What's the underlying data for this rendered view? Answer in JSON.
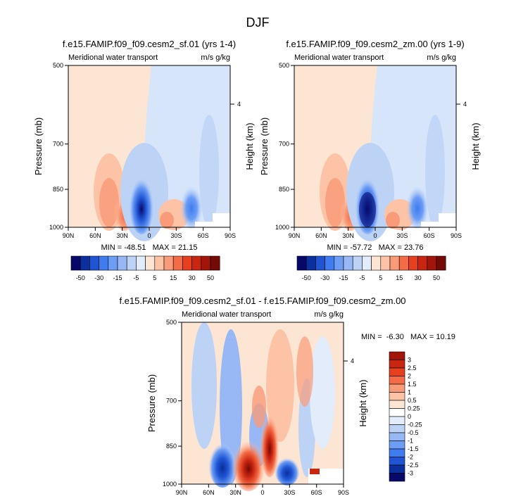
{
  "figure_title": "DJF",
  "chart_data": [
    {
      "type": "heatmap",
      "title": "f.e15.FAMIP.f09_f09.cesm2_sf.01 (yrs 1-4)",
      "left_label": "Meridional water transport",
      "right_label": "m/s g/kg",
      "ylabel": "Pressure (mb)",
      "ylabel_right": "Height (km)",
      "x_ticks": [
        "90N",
        "60N",
        "30N",
        "0",
        "30S",
        "60S",
        "90S"
      ],
      "y_ticks": [
        "500",
        "700",
        "850",
        "1000"
      ],
      "right_tick": "4",
      "stats": "MIN = -48.51   MAX = 21.15",
      "min": -48.51,
      "max": 21.15
    },
    {
      "type": "heatmap",
      "title": "f.e15.FAMIP.f09_f09.cesm2_zm.00 (yrs 1-9)",
      "left_label": "Meridional water transport",
      "right_label": "m/s g/kg",
      "ylabel": "Pressure (mb)",
      "ylabel_right": "Height (km)",
      "x_ticks": [
        "90N",
        "60N",
        "30N",
        "0",
        "30S",
        "60S",
        "90S"
      ],
      "y_ticks": [
        "500",
        "700",
        "850",
        "1000"
      ],
      "right_tick": "4",
      "stats": "MIN = -57.72   MAX = 23.76",
      "min": -57.72,
      "max": 23.76
    },
    {
      "type": "heatmap",
      "title": "f.e15.FAMIP.f09_f09.cesm2_sf.01 - f.e15.FAMIP.f09_f09.cesm2_zm.00",
      "left_label": "Meridional water transport",
      "right_label": "m/s g/kg",
      "ylabel": "Pressure (mb)",
      "ylabel_right": "Height (km)",
      "x_ticks": [
        "90N",
        "60N",
        "30N",
        "0",
        "30S",
        "60S",
        "90S"
      ],
      "y_ticks": [
        "500",
        "700",
        "850",
        "1000"
      ],
      "right_tick": "4",
      "stats": "MIN =  -6.30   MAX = 10.19",
      "min": -6.3,
      "max": 10.19
    }
  ],
  "colorbar_top": {
    "labels": [
      "-50",
      "-30",
      "-15",
      "-5",
      "5",
      "15",
      "30",
      "50"
    ],
    "colors": [
      "#08086b",
      "#0b2f9c",
      "#1f55d3",
      "#3f7cf0",
      "#6d9df5",
      "#97b8f5",
      "#bdd3f6",
      "#e2ecfb",
      "#fde5d4",
      "#fcc3a7",
      "#f99b78",
      "#f46c45",
      "#e6401f",
      "#c92612",
      "#a1150b",
      "#730a05"
    ]
  },
  "colorbar_bottom": {
    "labels": [
      "3",
      "2.5",
      "2",
      "1.5",
      "1",
      "0.5",
      "0.25",
      "0",
      "-0.25",
      "-0.5",
      "-1",
      "-1.5",
      "-2",
      "-2.5",
      "-3"
    ],
    "colors": [
      "#a1150b",
      "#c92612",
      "#e6401f",
      "#f46c45",
      "#f99b78",
      "#fcc3a7",
      "#fde5d4",
      "#ffffff",
      "#e2ecfb",
      "#bdd3f6",
      "#97b8f5",
      "#6d9df5",
      "#3f7cf0",
      "#1f55d3",
      "#0b2f9c",
      "#08086b"
    ]
  }
}
